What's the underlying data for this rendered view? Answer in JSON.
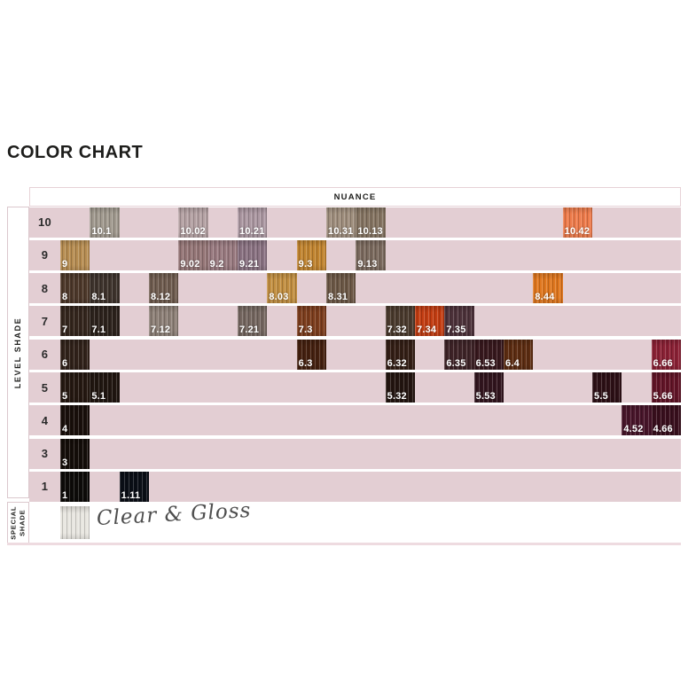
{
  "page": {
    "title": "COLOR CHART",
    "background": "#ffffff"
  },
  "table": {
    "header": {
      "label": "NUANCE"
    },
    "sidebar": {
      "level_label": "LEVEL SHADE",
      "special_line1": "SPECIAL",
      "special_line2": "SHADE"
    },
    "colors": {
      "row_band": "#e3ced3",
      "box_border": "#dbc8cd",
      "swatch_label_text": "#ffffff",
      "level_number_text": "#2b2b2b",
      "bottom_rule": "#eedbe0"
    },
    "columns": 21,
    "rows": [
      {
        "level": "10",
        "swatches": [
          {
            "label": "10.1",
            "col": 1,
            "color": "#a19a8f"
          },
          {
            "label": "10.02",
            "col": 4,
            "color": "#b4a1a3"
          },
          {
            "label": "10.21",
            "col": 6,
            "color": "#ab97a1"
          },
          {
            "label": "10.31",
            "col": 9,
            "color": "#9f8e7d"
          },
          {
            "label": "10.13",
            "col": 10,
            "color": "#857462"
          },
          {
            "label": "10.42",
            "col": 17,
            "color": "#ee7b4b"
          }
        ]
      },
      {
        "level": "9",
        "swatches": [
          {
            "label": "9",
            "col": 0,
            "color": "#b78d52"
          },
          {
            "label": "9.02",
            "col": 4,
            "color": "#957677"
          },
          {
            "label": "9.2",
            "col": 5,
            "color": "#997a80"
          },
          {
            "label": "9.21",
            "col": 6,
            "color": "#8a7282"
          },
          {
            "label": "9.3",
            "col": 8,
            "color": "#c1842f"
          },
          {
            "label": "9.13",
            "col": 10,
            "color": "#7b6a5e"
          }
        ]
      },
      {
        "level": "8",
        "swatches": [
          {
            "label": "8",
            "col": 0,
            "color": "#4d382a"
          },
          {
            "label": "8.1",
            "col": 1,
            "color": "#3e332c"
          },
          {
            "label": "8.12",
            "col": 3,
            "color": "#6f5c4f"
          },
          {
            "label": "8.03",
            "col": 7,
            "color": "#c28f41"
          },
          {
            "label": "8.31",
            "col": 9,
            "color": "#6c5846"
          },
          {
            "label": "8.44",
            "col": 16,
            "color": "#e0771e"
          }
        ]
      },
      {
        "level": "7",
        "swatches": [
          {
            "label": "7",
            "col": 0,
            "color": "#34261d"
          },
          {
            "label": "7.1",
            "col": 1,
            "color": "#2c221c"
          },
          {
            "label": "7.12",
            "col": 3,
            "color": "#8d8077"
          },
          {
            "label": "7.21",
            "col": 6,
            "color": "#756760"
          },
          {
            "label": "7.3",
            "col": 8,
            "color": "#7c3d1d"
          },
          {
            "label": "7.32",
            "col": 11,
            "color": "#4a3a2d"
          },
          {
            "label": "7.34",
            "col": 12,
            "color": "#c33d12"
          },
          {
            "label": "7.35",
            "col": 13,
            "color": "#4d323a"
          }
        ]
      },
      {
        "level": "6",
        "swatches": [
          {
            "label": "6",
            "col": 0,
            "color": "#31221a"
          },
          {
            "label": "6.3",
            "col": 8,
            "color": "#44200f"
          },
          {
            "label": "6.32",
            "col": 11,
            "color": "#331e15"
          },
          {
            "label": "6.35",
            "col": 13,
            "color": "#3e2327"
          },
          {
            "label": "6.53",
            "col": 14,
            "color": "#37181d"
          },
          {
            "label": "6.4",
            "col": 15,
            "color": "#5c2c11"
          },
          {
            "label": "6.66",
            "col": 20,
            "color": "#8b2135"
          }
        ]
      },
      {
        "level": "5",
        "swatches": [
          {
            "label": "5",
            "col": 0,
            "color": "#251811"
          },
          {
            "label": "5.1",
            "col": 1,
            "color": "#201610"
          },
          {
            "label": "5.32",
            "col": 11,
            "color": "#231510"
          },
          {
            "label": "5.53",
            "col": 14,
            "color": "#32151e"
          },
          {
            "label": "5.5",
            "col": 18,
            "color": "#2d1016"
          },
          {
            "label": "5.66",
            "col": 20,
            "color": "#621427"
          }
        ]
      },
      {
        "level": "4",
        "swatches": [
          {
            "label": "4",
            "col": 0,
            "color": "#190f0b"
          },
          {
            "label": "4.52",
            "col": 19,
            "color": "#48152a"
          },
          {
            "label": "4.66",
            "col": 20,
            "color": "#390f1d"
          }
        ]
      },
      {
        "level": "3",
        "swatches": [
          {
            "label": "3",
            "col": 0,
            "color": "#140d09"
          }
        ]
      },
      {
        "level": "1",
        "swatches": [
          {
            "label": "1",
            "col": 0,
            "color": "#0d0b09"
          },
          {
            "label": "1.11",
            "col": 2,
            "color": "#0a0e16"
          }
        ]
      }
    ],
    "special_row": {
      "swatch_color": "#e8e6e0",
      "note": "Clear & Gloss"
    }
  }
}
